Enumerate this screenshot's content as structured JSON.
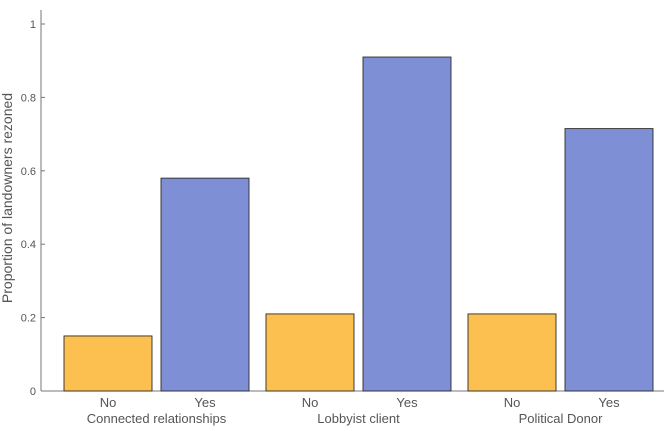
{
  "chart_data": {
    "type": "bar",
    "title": "",
    "xlabel": "",
    "ylabel": "Proportion of landowners rezoned",
    "ylim": [
      0,
      1
    ],
    "yticks": [
      0,
      0.2,
      0.4,
      0.6,
      0.8,
      1
    ],
    "ytick_labels": [
      "0",
      "0.2",
      "0.4",
      "0.6",
      "0.8",
      "1"
    ],
    "grid": false,
    "groups": [
      {
        "label": "Connected relationships",
        "bars": [
          {
            "label": "No",
            "value": 0.15
          },
          {
            "label": "Yes",
            "value": 0.58
          }
        ]
      },
      {
        "label": "Lobbyist client",
        "bars": [
          {
            "label": "No",
            "value": 0.21
          },
          {
            "label": "Yes",
            "value": 0.91
          }
        ]
      },
      {
        "label": "Political Donor",
        "bars": [
          {
            "label": "No",
            "value": 0.21
          },
          {
            "label": "Yes",
            "value": 0.715
          }
        ]
      }
    ],
    "colors": {
      "No": "#fbc050",
      "Yes": "#7f8fd6",
      "stroke": "#2b2b2b",
      "axis": "#777777"
    }
  }
}
